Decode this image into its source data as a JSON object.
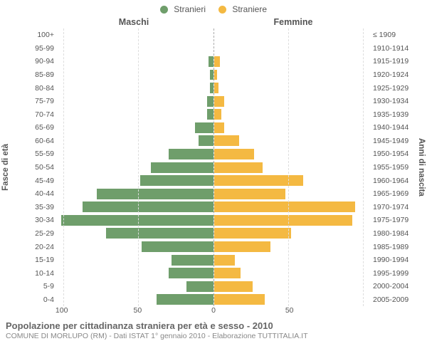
{
  "chart": {
    "type": "population-pyramid",
    "legend": [
      {
        "label": "Stranieri",
        "color": "#6f9e6b"
      },
      {
        "label": "Straniere",
        "color": "#f4b942"
      }
    ],
    "col_headers": {
      "left": "Maschi",
      "right": "Femmine"
    },
    "left_axis_title": "Fasce di età",
    "right_axis_title": "Anni di nascita",
    "bar_color_male": "#6f9e6b",
    "bar_color_female": "#f4b942",
    "grid_color": "#dddddd",
    "center_line_color": "#aaaaaa",
    "background_color": "#ffffff",
    "x_max": 105,
    "x_ticks_left": [
      100,
      50,
      0
    ],
    "x_ticks_right": [
      50
    ],
    "age_groups": [
      {
        "age": "100+",
        "birth": "≤ 1909",
        "m": 0,
        "f": 0
      },
      {
        "age": "95-99",
        "birth": "1910-1914",
        "m": 0,
        "f": 0
      },
      {
        "age": "90-94",
        "birth": "1915-1919",
        "m": 3,
        "f": 4
      },
      {
        "age": "85-89",
        "birth": "1920-1924",
        "m": 2,
        "f": 2
      },
      {
        "age": "80-84",
        "birth": "1925-1929",
        "m": 2,
        "f": 3
      },
      {
        "age": "75-79",
        "birth": "1930-1934",
        "m": 4,
        "f": 7
      },
      {
        "age": "70-74",
        "birth": "1935-1939",
        "m": 4,
        "f": 5
      },
      {
        "age": "65-69",
        "birth": "1940-1944",
        "m": 12,
        "f": 7
      },
      {
        "age": "60-64",
        "birth": "1945-1949",
        "m": 10,
        "f": 17
      },
      {
        "age": "55-59",
        "birth": "1950-1954",
        "m": 30,
        "f": 27
      },
      {
        "age": "50-54",
        "birth": "1955-1959",
        "m": 42,
        "f": 33
      },
      {
        "age": "45-49",
        "birth": "1960-1964",
        "m": 49,
        "f": 60
      },
      {
        "age": "40-44",
        "birth": "1965-1969",
        "m": 78,
        "f": 48
      },
      {
        "age": "35-39",
        "birth": "1970-1974",
        "m": 88,
        "f": 95
      },
      {
        "age": "30-34",
        "birth": "1975-1979",
        "m": 102,
        "f": 93
      },
      {
        "age": "25-29",
        "birth": "1980-1984",
        "m": 72,
        "f": 52
      },
      {
        "age": "20-24",
        "birth": "1985-1989",
        "m": 48,
        "f": 38
      },
      {
        "age": "15-19",
        "birth": "1990-1994",
        "m": 28,
        "f": 14
      },
      {
        "age": "10-14",
        "birth": "1995-1999",
        "m": 30,
        "f": 18
      },
      {
        "age": "5-9",
        "birth": "2000-2004",
        "m": 18,
        "f": 26
      },
      {
        "age": "0-4",
        "birth": "2005-2009",
        "m": 38,
        "f": 34
      }
    ],
    "caption_title": "Popolazione per cittadinanza straniera per età e sesso - 2010",
    "caption_sub": "COMUNE DI MORLUPO (RM) - Dati ISTAT 1° gennaio 2010 - Elaborazione TUTTITALIA.IT"
  }
}
